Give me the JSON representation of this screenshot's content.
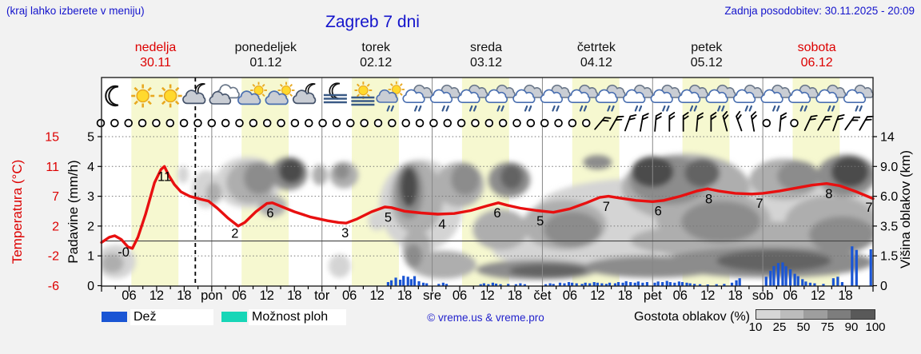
{
  "header": {
    "hint": "(kraj lahko izberete v meniju)",
    "title": "Zagreb 7 dni",
    "last_update": "Zadnja posodobitev: 30.11.2025 - 20:09"
  },
  "days": [
    {
      "name": "nedelja",
      "date": "30.11",
      "weekend": true
    },
    {
      "name": "ponedeljek",
      "date": "01.12",
      "weekend": false
    },
    {
      "name": "torek",
      "date": "02.12",
      "weekend": false
    },
    {
      "name": "sreda",
      "date": "03.12",
      "weekend": false
    },
    {
      "name": "četrtek",
      "date": "04.12",
      "weekend": false
    },
    {
      "name": "petek",
      "date": "05.12",
      "weekend": false
    },
    {
      "name": "sobota",
      "date": "06.12",
      "weekend": true
    }
  ],
  "legend": {
    "rain_label": "Dež",
    "shower_label": "Možnost ploh",
    "copyright": "© vreme.us & vreme.pro",
    "cloud_density_label": "Gostota oblakov (%)",
    "density_tick_labels": [
      "10",
      "25",
      "50",
      "75",
      "90",
      "100"
    ]
  },
  "colors": {
    "accent_blue": "#1414cc",
    "weekend_red": "#dd0000",
    "temp_line": "#e81010",
    "rain": "#1a55d4",
    "shower": "#17d6b7",
    "dayband": "#f6f8d0",
    "density_scale": [
      "#d6d6d6",
      "#bcbcbc",
      "#9e9e9e",
      "#7d7d7d",
      "#595959"
    ]
  },
  "chart_data": {
    "type": "meteogram",
    "x_axis": {
      "days": 7,
      "hour_tick_labels": [
        "06",
        "12",
        "18"
      ],
      "day_tick_labels": [
        "pon",
        "tor",
        "sre",
        "čet",
        "pet",
        "sob"
      ],
      "now_line_day": 0.851
    },
    "left_axis": {
      "title": "Padavine (mm/h)",
      "ticks": [
        "0",
        "1",
        "2",
        "3",
        "4",
        "5"
      ]
    },
    "temp_axis": {
      "title": "Temperatura (°C)",
      "ticks": [
        "-6",
        "-2",
        "2",
        "7",
        "11",
        "15"
      ]
    },
    "right_axis": {
      "title": "Višina oblakov (km)",
      "ticks": [
        "0",
        "1.5",
        "3.5",
        "6.0",
        "9.0",
        "14"
      ]
    },
    "daylight": {
      "start_h": 6.5,
      "end_h": 16.75
    },
    "temperature": {
      "unit": "°C",
      "points": [
        [
          0,
          -0.2
        ],
        [
          0.07,
          0.5
        ],
        [
          0.12,
          0.7
        ],
        [
          0.18,
          0.2
        ],
        [
          0.24,
          -0.8
        ],
        [
          0.28,
          -1.0
        ],
        [
          0.33,
          0.5
        ],
        [
          0.4,
          4.0
        ],
        [
          0.48,
          8.8
        ],
        [
          0.54,
          10.6
        ],
        [
          0.57,
          11.0
        ],
        [
          0.61,
          9.8
        ],
        [
          0.66,
          8.6
        ],
        [
          0.72,
          7.6
        ],
        [
          0.8,
          7.0
        ],
        [
          0.9,
          6.5
        ],
        [
          0.97,
          6.2
        ],
        [
          1.05,
          5.0
        ],
        [
          1.15,
          3.3
        ],
        [
          1.24,
          2.0
        ],
        [
          1.3,
          2.6
        ],
        [
          1.4,
          4.4
        ],
        [
          1.5,
          5.8
        ],
        [
          1.55,
          5.9
        ],
        [
          1.63,
          5.3
        ],
        [
          1.75,
          4.4
        ],
        [
          1.9,
          3.5
        ],
        [
          2.05,
          2.9
        ],
        [
          2.15,
          2.6
        ],
        [
          2.22,
          2.5
        ],
        [
          2.32,
          3.2
        ],
        [
          2.45,
          4.4
        ],
        [
          2.57,
          5.2
        ],
        [
          2.63,
          5.1
        ],
        [
          2.75,
          4.5
        ],
        [
          2.9,
          4.2
        ],
        [
          3.05,
          4.0
        ],
        [
          3.2,
          4.1
        ],
        [
          3.35,
          4.6
        ],
        [
          3.5,
          5.4
        ],
        [
          3.6,
          5.9
        ],
        [
          3.68,
          5.5
        ],
        [
          3.8,
          5.0
        ],
        [
          3.95,
          4.6
        ],
        [
          4.1,
          4.3
        ],
        [
          4.25,
          4.9
        ],
        [
          4.4,
          5.9
        ],
        [
          4.52,
          6.8
        ],
        [
          4.6,
          7.0
        ],
        [
          4.7,
          6.7
        ],
        [
          4.85,
          6.3
        ],
        [
          5.0,
          6.1
        ],
        [
          5.1,
          6.3
        ],
        [
          5.25,
          7.0
        ],
        [
          5.4,
          7.7
        ],
        [
          5.5,
          8.0
        ],
        [
          5.6,
          7.7
        ],
        [
          5.75,
          7.4
        ],
        [
          5.9,
          7.3
        ],
        [
          6.0,
          7.4
        ],
        [
          6.15,
          7.7
        ],
        [
          6.3,
          8.1
        ],
        [
          6.45,
          8.5
        ],
        [
          6.58,
          8.7
        ],
        [
          6.7,
          8.4
        ],
        [
          6.85,
          7.6
        ],
        [
          7.0,
          6.6
        ]
      ],
      "labels": [
        [
          0.2,
          "-0"
        ],
        [
          0.57,
          "11"
        ],
        [
          1.21,
          "2"
        ],
        [
          1.53,
          "6"
        ],
        [
          2.21,
          "3"
        ],
        [
          2.6,
          "5"
        ],
        [
          3.09,
          "4"
        ],
        [
          3.59,
          "6"
        ],
        [
          3.98,
          "5"
        ],
        [
          4.58,
          "7"
        ],
        [
          5.05,
          "6"
        ],
        [
          5.51,
          "8"
        ],
        [
          5.97,
          "7"
        ],
        [
          6.6,
          "8"
        ],
        [
          6.97,
          "7"
        ]
      ]
    },
    "precipitation": {
      "unit": "mm/h",
      "bars": [
        [
          2.6,
          0.12
        ],
        [
          2.63,
          0.18
        ],
        [
          2.67,
          0.27
        ],
        [
          2.71,
          0.2
        ],
        [
          2.74,
          0.33
        ],
        [
          2.78,
          0.3
        ],
        [
          2.81,
          0.22
        ],
        [
          2.84,
          0.32
        ],
        [
          2.88,
          0.15
        ],
        [
          2.92,
          0.1
        ],
        [
          2.95,
          0.08
        ],
        [
          3.06,
          0.06
        ],
        [
          3.1,
          0.1
        ],
        [
          3.13,
          0.06
        ],
        [
          3.44,
          0.05
        ],
        [
          3.47,
          0.08
        ],
        [
          3.51,
          0.05
        ],
        [
          3.55,
          0.1
        ],
        [
          3.58,
          0.07
        ],
        [
          3.62,
          0.05
        ],
        [
          3.69,
          0.06
        ],
        [
          3.76,
          0.05
        ],
        [
          3.8,
          0.08
        ],
        [
          3.84,
          0.05
        ],
        [
          4.03,
          0.05
        ],
        [
          4.07,
          0.08
        ],
        [
          4.1,
          0.06
        ],
        [
          4.16,
          0.1
        ],
        [
          4.2,
          0.08
        ],
        [
          4.24,
          0.12
        ],
        [
          4.27,
          0.1
        ],
        [
          4.31,
          0.08
        ],
        [
          4.36,
          0.06
        ],
        [
          4.39,
          0.1
        ],
        [
          4.43,
          0.08
        ],
        [
          4.47,
          0.12
        ],
        [
          4.5,
          0.1
        ],
        [
          4.54,
          0.08
        ],
        [
          4.58,
          0.06
        ],
        [
          4.61,
          0.1
        ],
        [
          4.66,
          0.08
        ],
        [
          4.69,
          0.12
        ],
        [
          4.73,
          0.1
        ],
        [
          4.76,
          0.15
        ],
        [
          4.8,
          0.12
        ],
        [
          4.84,
          0.1
        ],
        [
          4.87,
          0.14
        ],
        [
          4.91,
          0.1
        ],
        [
          4.95,
          0.12
        ],
        [
          5.02,
          0.1
        ],
        [
          5.05,
          0.14
        ],
        [
          5.09,
          0.12
        ],
        [
          5.13,
          0.16
        ],
        [
          5.16,
          0.12
        ],
        [
          5.2,
          0.1
        ],
        [
          5.24,
          0.14
        ],
        [
          5.27,
          0.12
        ],
        [
          5.31,
          0.1
        ],
        [
          5.34,
          0.08
        ],
        [
          5.38,
          0.06
        ],
        [
          5.43,
          0.05
        ],
        [
          5.5,
          0.04
        ],
        [
          5.58,
          0.05
        ],
        [
          5.65,
          0.06
        ],
        [
          5.72,
          0.1
        ],
        [
          5.76,
          0.18
        ],
        [
          5.79,
          0.25
        ],
        [
          6.03,
          0.3
        ],
        [
          6.07,
          0.5
        ],
        [
          6.1,
          0.66
        ],
        [
          6.14,
          0.76
        ],
        [
          6.18,
          0.78
        ],
        [
          6.21,
          0.65
        ],
        [
          6.25,
          0.55
        ],
        [
          6.29,
          0.4
        ],
        [
          6.32,
          0.32
        ],
        [
          6.36,
          0.22
        ],
        [
          6.39,
          0.14
        ],
        [
          6.43,
          0.1
        ],
        [
          6.47,
          0.08
        ],
        [
          6.55,
          0.06
        ],
        [
          6.64,
          0.25
        ],
        [
          6.68,
          0.3
        ],
        [
          6.72,
          0.12
        ],
        [
          6.81,
          1.32
        ],
        [
          6.85,
          1.2
        ],
        [
          6.98,
          1.22
        ]
      ]
    },
    "cloud_cover": {
      "legend_title": "Gostota oblakov (%)",
      "levels": [
        10,
        25,
        50,
        75,
        90,
        100
      ],
      "blobs": [
        [
          0.13,
          1.3,
          0.18,
          0.95,
          25
        ],
        [
          0.1,
          1.15,
          0.1,
          0.5,
          50
        ],
        [
          0.74,
          8.2,
          0.05,
          0.9,
          25
        ],
        [
          0.95,
          6.8,
          0.13,
          1.8,
          25
        ],
        [
          1.02,
          6.4,
          0.07,
          1.0,
          50
        ],
        [
          1.33,
          7.8,
          0.3,
          2.8,
          25
        ],
        [
          1.35,
          7.6,
          0.22,
          2.2,
          50
        ],
        [
          1.43,
          8.0,
          0.14,
          1.8,
          75
        ],
        [
          1.7,
          8.6,
          0.17,
          2.0,
          75
        ],
        [
          1.72,
          8.8,
          0.11,
          1.5,
          95
        ],
        [
          1.55,
          5.2,
          0.13,
          0.9,
          50
        ],
        [
          1.98,
          8.2,
          0.07,
          1.1,
          50
        ],
        [
          2.2,
          8.3,
          0.13,
          1.5,
          50
        ],
        [
          2.18,
          8.6,
          0.07,
          0.9,
          75
        ],
        [
          2.16,
          1.0,
          0.1,
          0.6,
          25
        ],
        [
          2.5,
          4.0,
          0.08,
          0.8,
          25
        ],
        [
          2.9,
          6.0,
          0.38,
          4.2,
          25
        ],
        [
          2.86,
          6.4,
          0.24,
          3.4,
          50
        ],
        [
          2.79,
          6.8,
          0.13,
          2.7,
          75
        ],
        [
          2.79,
          7.0,
          0.08,
          1.9,
          95
        ],
        [
          2.86,
          2.1,
          0.13,
          1.2,
          50
        ],
        [
          2.83,
          1.6,
          0.08,
          0.7,
          75
        ],
        [
          3.1,
          1.1,
          0.3,
          0.75,
          50
        ],
        [
          3.25,
          7.4,
          0.22,
          2.3,
          50
        ],
        [
          3.3,
          7.8,
          0.13,
          1.7,
          75
        ],
        [
          3.7,
          7.8,
          0.19,
          1.9,
          75
        ],
        [
          3.72,
          8.0,
          0.1,
          1.3,
          90
        ],
        [
          3.62,
          3.4,
          0.25,
          1.5,
          50
        ],
        [
          3.95,
          0.8,
          0.55,
          0.5,
          75
        ],
        [
          4.05,
          0.75,
          0.35,
          0.33,
          90
        ],
        [
          4.2,
          3.8,
          0.38,
          1.9,
          50
        ],
        [
          4.27,
          3.4,
          0.26,
          1.3,
          75
        ],
        [
          4.5,
          9.8,
          0.13,
          1.1,
          75
        ],
        [
          4.9,
          5.2,
          0.95,
          2.6,
          25
        ],
        [
          5.0,
          0.95,
          0.62,
          0.55,
          75
        ],
        [
          5.3,
          7.5,
          0.58,
          3.6,
          50
        ],
        [
          5.15,
          8.0,
          0.36,
          2.7,
          75
        ],
        [
          5.0,
          8.8,
          0.19,
          1.9,
          95
        ],
        [
          5.45,
          8.6,
          0.16,
          1.7,
          90
        ],
        [
          5.55,
          4.3,
          0.52,
          2.1,
          50
        ],
        [
          5.62,
          4.0,
          0.36,
          1.6,
          75
        ],
        [
          6.05,
          1.25,
          0.95,
          0.85,
          75
        ],
        [
          6.1,
          1.3,
          0.52,
          0.6,
          90
        ],
        [
          6.3,
          5.2,
          0.75,
          3.4,
          25
        ],
        [
          6.2,
          8.0,
          0.32,
          2.3,
          50
        ],
        [
          6.32,
          8.2,
          0.19,
          1.7,
          75
        ],
        [
          6.76,
          8.5,
          0.27,
          2.5,
          75
        ],
        [
          6.79,
          8.8,
          0.17,
          1.9,
          95
        ],
        [
          6.62,
          4.0,
          0.42,
          2.1,
          50
        ],
        [
          6.72,
          3.0,
          0.3,
          1.3,
          75
        ],
        [
          5.9,
          2.6,
          1.1,
          1.3,
          50
        ],
        [
          4.3,
          1.9,
          0.75,
          1.0,
          25
        ]
      ]
    },
    "weather_icons": [
      "moon",
      "sun",
      "sun",
      "moon-cloud",
      "clouds",
      "sun-cloud",
      "sun-cloud",
      "moon-cloud",
      "moon-fog",
      "sun-fog",
      "sun-cloud-rain",
      "clouds-rain",
      "clouds-rain",
      "clouds-rain",
      "clouds-rain",
      "clouds-rain",
      "clouds-rain",
      "clouds-rain",
      "clouds-rain",
      "clouds-rain",
      "clouds-rain",
      "clouds-rain",
      "clouds-rain",
      "clouds-rain",
      "clouds-rain",
      "clouds-rain",
      "clouds-rain",
      "clouds-rain"
    ],
    "wind_symbols": [
      "c",
      "c",
      "c",
      "c",
      "c",
      "c",
      "c",
      "c",
      "c",
      "c",
      "c",
      "c",
      "c",
      "c",
      "c",
      "c",
      "c",
      "c",
      "c",
      "c",
      "c",
      "c",
      "c",
      "c",
      "c",
      "c",
      "c",
      "c",
      "c",
      "c",
      "c",
      "c",
      "c",
      "c",
      "c",
      "c",
      "b40",
      "b30",
      "b20",
      "b10",
      "b5",
      "b0",
      "b0",
      "b5",
      "b0",
      "b-15",
      "b-20",
      "b-10",
      "c",
      "b5",
      "c",
      "b25",
      "b30",
      "b20",
      "b35",
      "b30"
    ]
  }
}
